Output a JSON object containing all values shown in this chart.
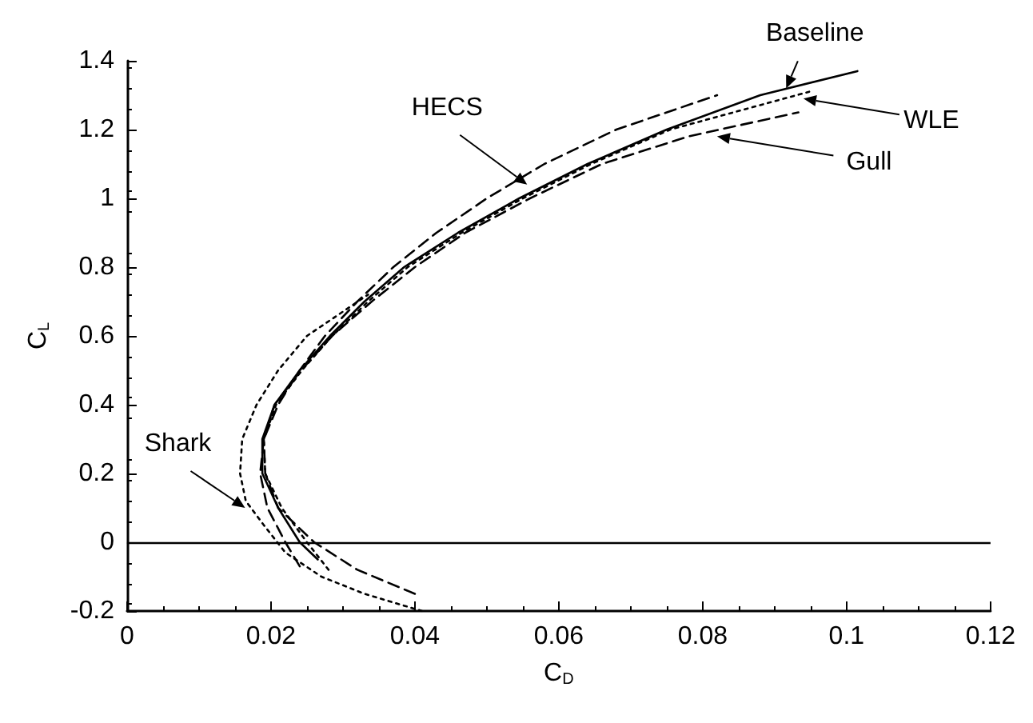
{
  "chart_data": {
    "type": "line",
    "xlabel": "C$_{D}$",
    "ylabel": "C$_{L}$",
    "xlim": [
      0,
      0.12
    ],
    "xticks": [
      0,
      0.02,
      0.04,
      0.06,
      0.08,
      0.1,
      0.12
    ],
    "ylim": [
      -0.2,
      1.4
    ],
    "yticks": [
      -0.2,
      0,
      0.2,
      0.4,
      0.6,
      0.8,
      1,
      1.2,
      1.4
    ],
    "grid": false,
    "marker": "none",
    "ref_lines": [
      {
        "axis": "y",
        "value": 0,
        "color": "#000000",
        "line_style": "solid"
      }
    ],
    "series": [
      {
        "color": "#000000",
        "line_style": "solid",
        "x": [
          0.0265,
          0.024,
          0.021,
          0.0188,
          0.0188,
          0.0205,
          0.024,
          0.0282,
          0.033,
          0.0385,
          0.046,
          0.0545,
          0.064,
          0.075,
          0.088,
          0.1015
        ],
        "values": [
          -0.05,
          0,
          0.1,
          0.2,
          0.3,
          0.4,
          0.5,
          0.6,
          0.7,
          0.8,
          0.9,
          1.0,
          1.1,
          1.2,
          1.3,
          1.37
        ]
      },
      {
        "color": "#000000",
        "line_style": "dashed",
        "x": [
          0.04,
          0.032,
          0.026,
          0.021,
          0.0192,
          0.019,
          0.0205,
          0.0242,
          0.0285,
          0.034,
          0.04,
          0.047,
          0.056,
          0.066,
          0.078,
          0.0933
        ],
        "values": [
          -0.15,
          -0.08,
          0,
          0.1,
          0.2,
          0.3,
          0.4,
          0.5,
          0.6,
          0.7,
          0.8,
          0.9,
          1.0,
          1.1,
          1.18,
          1.25
        ]
      },
      {
        "color": "#000000",
        "line_style": "dashed",
        "x": [
          0.024,
          0.022,
          0.0195,
          0.0185,
          0.019,
          0.021,
          0.024,
          0.0275,
          0.032,
          0.037,
          0.043,
          0.05,
          0.058,
          0.068,
          0.082
        ],
        "values": [
          -0.07,
          0,
          0.1,
          0.2,
          0.3,
          0.4,
          0.5,
          0.6,
          0.7,
          0.8,
          0.9,
          1.0,
          1.1,
          1.2,
          1.3
        ]
      },
      {
        "color": "#000000",
        "line_style": "dotted",
        "x": [
          0.028,
          0.025,
          0.0215,
          0.0192,
          0.019,
          0.0207,
          0.0243,
          0.0285,
          0.0335,
          0.039,
          0.0465,
          0.055,
          0.0645,
          0.0755,
          0.0948
        ],
        "values": [
          -0.08,
          0,
          0.1,
          0.2,
          0.3,
          0.4,
          0.5,
          0.6,
          0.7,
          0.8,
          0.9,
          1.0,
          1.1,
          1.2,
          1.31
        ]
      },
      {
        "color": "#000000",
        "line_style": "dotted",
        "x": [
          0.041,
          0.033,
          0.027,
          0.022,
          0.019,
          0.0165,
          0.0157,
          0.016,
          0.018,
          0.021,
          0.025,
          0.0335
        ],
        "values": [
          -0.2,
          -0.15,
          -0.1,
          -0.03,
          0.05,
          0.12,
          0.2,
          0.3,
          0.4,
          0.5,
          0.6,
          0.72
        ]
      }
    ],
    "annotations": [
      {
        "text": "Baseline",
        "x": 0.0916,
        "y": 1.32
      },
      {
        "text": "WLE",
        "x": 0.094,
        "y": 1.29
      },
      {
        "text": "Gull",
        "x": 0.082,
        "y": 1.18
      },
      {
        "text": "HECS",
        "x": 0.0556,
        "y": 1.04
      },
      {
        "text": "Shark",
        "x": 0.0164,
        "y": 0.1
      }
    ]
  }
}
